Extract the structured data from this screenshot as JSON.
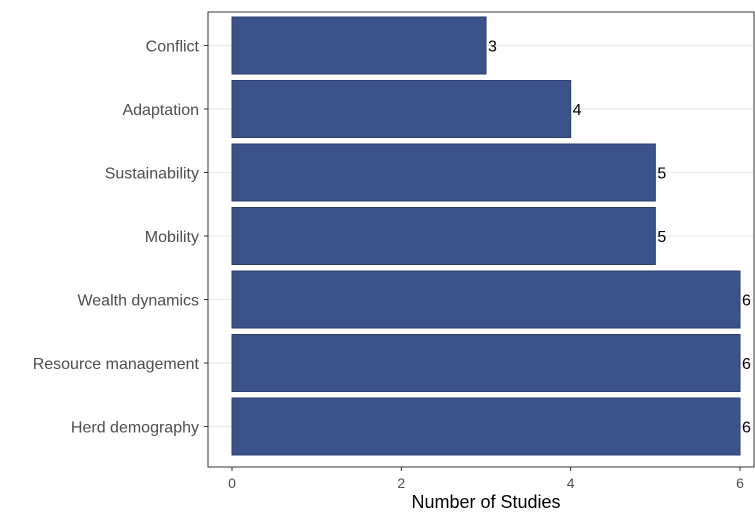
{
  "chart_data": {
    "type": "bar",
    "orientation": "horizontal",
    "categories": [
      "Conflict",
      "Adaptation",
      "Sustainability",
      "Mobility",
      "Wealth dynamics",
      "Resource management",
      "Herd demography"
    ],
    "values": [
      3,
      4,
      5,
      5,
      6,
      6,
      6
    ],
    "title": "",
    "xlabel": "Number of Studies",
    "ylabel": "",
    "xlim": [
      0,
      6
    ],
    "xticks": [
      0,
      2,
      4,
      6
    ],
    "grid": true,
    "legend": "none",
    "bar_color": "#3b528b",
    "bar_edge_color": "#2a3d6e"
  }
}
